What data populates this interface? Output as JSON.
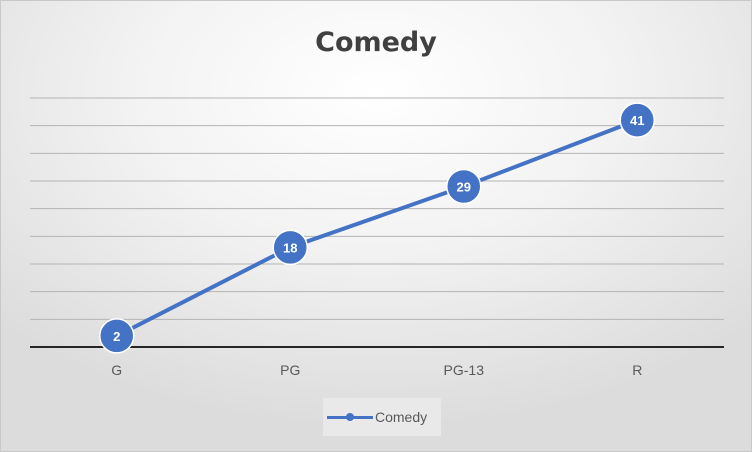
{
  "chart_data": {
    "type": "line",
    "title": "Comedy",
    "xlabel": "",
    "ylabel": "",
    "categories": [
      "G",
      "PG",
      "PG-13",
      "R"
    ],
    "series": [
      {
        "name": "Comedy",
        "values": [
          2,
          18,
          29,
          41
        ],
        "color": "#4472C4"
      }
    ],
    "ylim": [
      0,
      45
    ],
    "y_gridline_step": 5,
    "y_tick_labels_shown": false,
    "grid": true,
    "data_labels": true,
    "legend": {
      "position": "bottom",
      "entries": [
        "Comedy"
      ]
    }
  }
}
